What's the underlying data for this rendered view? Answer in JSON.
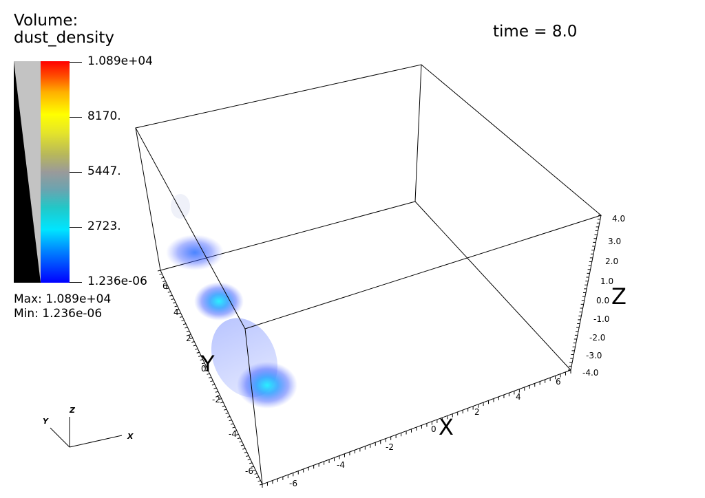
{
  "legend": {
    "title_line1": "Volume:",
    "title_line2": "dust_density",
    "ticks": [
      "1.089e+04",
      "8170.",
      "5447.",
      "2723.",
      "1.236e-06"
    ],
    "max_label": "Max:  1.089e+04",
    "min_label": "Min:  1.236e-06"
  },
  "time_label": "time = 8.0",
  "axes": {
    "x_title": "X",
    "y_title": "Y",
    "z_title": "Z",
    "x_ticks": [
      "-6",
      "-4",
      "-2",
      "0",
      "2",
      "4",
      "6"
    ],
    "y_ticks": [
      "-6",
      "-4",
      "-2",
      "0",
      "2",
      "4",
      "6"
    ],
    "z_ticks": [
      "4.0",
      "3.0",
      "2.0",
      "1.0",
      "0.0",
      "-1.0",
      "-2.0",
      "-3.0",
      "-4.0"
    ]
  },
  "triad": {
    "x": "X",
    "y": "Y",
    "z": "Z"
  },
  "colors": {
    "blob_core": "#00e0ff",
    "blob_edge": "#2040ff"
  }
}
